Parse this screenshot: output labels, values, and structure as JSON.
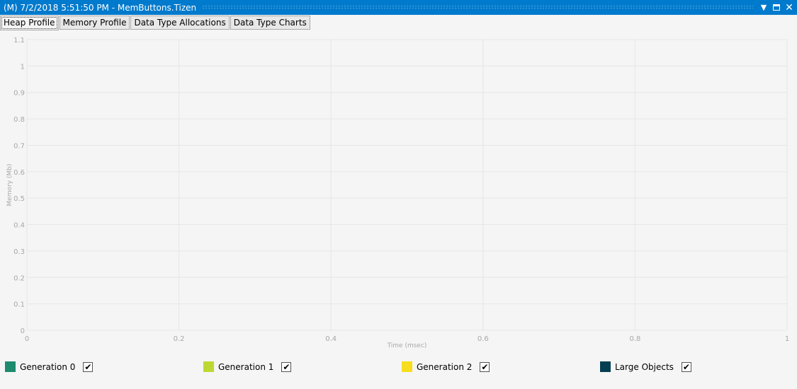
{
  "window": {
    "title": "(M) 7/2/2018 5:51:50 PM - MemButtons.Tizen",
    "icons": [
      "dropdown-arrow-icon",
      "maximize-icon",
      "close-icon"
    ]
  },
  "tabs": [
    {
      "label": "Heap Profile",
      "active": true
    },
    {
      "label": "Memory Profile"
    },
    {
      "label": "Data Type Allocations"
    },
    {
      "label": "Data Type Charts"
    }
  ],
  "chart_data": {
    "type": "area",
    "xlabel": "Time (msec)",
    "ylabel": "Memory (Mb)",
    "xlim": [
      0,
      1
    ],
    "ylim": [
      0,
      1.1
    ],
    "xticks": [
      "0",
      "0.2",
      "0.4",
      "0.6",
      "0.8",
      "1"
    ],
    "yticks": [
      "0",
      "0.1",
      "0.2",
      "0.3",
      "0.4",
      "0.5",
      "0.6",
      "0.7",
      "0.8",
      "0.9",
      "1",
      "1.1"
    ],
    "grid": true,
    "series": []
  },
  "legend": [
    {
      "label": "Generation 0",
      "color": "#1e8a6e",
      "checked": true
    },
    {
      "label": "Generation 1",
      "color": "#bdd833",
      "checked": true
    },
    {
      "label": "Generation 2",
      "color": "#f7dd1e",
      "checked": true
    },
    {
      "label": "Large Objects",
      "color": "#063f52",
      "checked": true
    }
  ]
}
